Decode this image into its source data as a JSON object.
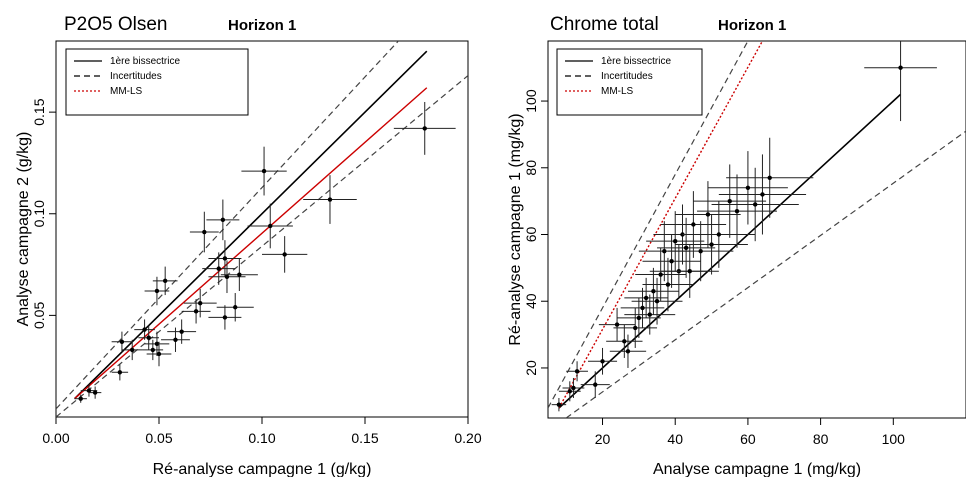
{
  "chart_data": [
    {
      "type": "scatter",
      "title": "P2O5 Olsen",
      "subtitle": "Horizon 1",
      "xlabel": "Ré-analyse campagne 1 (g/kg)",
      "ylabel": "Analyse campagne 2 (g/kg)",
      "xlim": [
        0.0,
        0.2
      ],
      "ylim": [
        0.0,
        0.185
      ],
      "xticks": [
        "0.00",
        "0.05",
        "0.10",
        "0.15",
        "0.20"
      ],
      "yticks": [
        "0.05",
        "0.10",
        "0.15"
      ],
      "legend": {
        "position": "top-left",
        "entries": [
          {
            "label": "1ère bissectrice",
            "style": "solid",
            "color": "#000000"
          },
          {
            "label": "Incertitudes",
            "style": "dashed",
            "color": "#000000"
          },
          {
            "label": "MM-LS",
            "style": "dotted",
            "color": "#cc0000"
          }
        ]
      },
      "reference_lines": {
        "bisector": {
          "x": [
            0.009,
            0.18
          ],
          "y": [
            0.009,
            0.18
          ]
        },
        "upper_uncertainty": {
          "x": [
            0.0,
            0.18
          ],
          "y": [
            0.004,
            0.2
          ]
        },
        "lower_uncertainty": {
          "x": [
            0.0,
            0.2
          ],
          "y": [
            0.0,
            0.168
          ]
        },
        "mm_ls": {
          "x": [
            0.009,
            0.18
          ],
          "y": [
            0.009,
            0.162
          ]
        }
      },
      "points": [
        {
          "x": 0.012,
          "y": 0.009,
          "ex": 0.003,
          "ey": 0.002
        },
        {
          "x": 0.016,
          "y": 0.013,
          "ex": 0.004,
          "ey": 0.003
        },
        {
          "x": 0.019,
          "y": 0.012,
          "ex": 0.003,
          "ey": 0.003
        },
        {
          "x": 0.031,
          "y": 0.022,
          "ex": 0.004,
          "ey": 0.004
        },
        {
          "x": 0.032,
          "y": 0.037,
          "ex": 0.005,
          "ey": 0.005
        },
        {
          "x": 0.037,
          "y": 0.033,
          "ex": 0.005,
          "ey": 0.005
        },
        {
          "x": 0.043,
          "y": 0.043,
          "ex": 0.005,
          "ey": 0.005
        },
        {
          "x": 0.045,
          "y": 0.039,
          "ex": 0.005,
          "ey": 0.006
        },
        {
          "x": 0.047,
          "y": 0.033,
          "ex": 0.005,
          "ey": 0.005
        },
        {
          "x": 0.049,
          "y": 0.036,
          "ex": 0.006,
          "ey": 0.006
        },
        {
          "x": 0.05,
          "y": 0.031,
          "ex": 0.006,
          "ey": 0.006
        },
        {
          "x": 0.049,
          "y": 0.062,
          "ex": 0.006,
          "ey": 0.007
        },
        {
          "x": 0.053,
          "y": 0.067,
          "ex": 0.006,
          "ey": 0.007
        },
        {
          "x": 0.058,
          "y": 0.038,
          "ex": 0.007,
          "ey": 0.006
        },
        {
          "x": 0.061,
          "y": 0.042,
          "ex": 0.007,
          "ey": 0.006
        },
        {
          "x": 0.068,
          "y": 0.052,
          "ex": 0.007,
          "ey": 0.006
        },
        {
          "x": 0.07,
          "y": 0.056,
          "ex": 0.008,
          "ey": 0.007
        },
        {
          "x": 0.072,
          "y": 0.091,
          "ex": 0.007,
          "ey": 0.01
        },
        {
          "x": 0.079,
          "y": 0.073,
          "ex": 0.008,
          "ey": 0.008
        },
        {
          "x": 0.081,
          "y": 0.097,
          "ex": 0.008,
          "ey": 0.01
        },
        {
          "x": 0.082,
          "y": 0.078,
          "ex": 0.008,
          "ey": 0.009
        },
        {
          "x": 0.083,
          "y": 0.069,
          "ex": 0.009,
          "ey": 0.008
        },
        {
          "x": 0.082,
          "y": 0.049,
          "ex": 0.008,
          "ey": 0.006
        },
        {
          "x": 0.087,
          "y": 0.054,
          "ex": 0.009,
          "ey": 0.007
        },
        {
          "x": 0.089,
          "y": 0.07,
          "ex": 0.009,
          "ey": 0.008
        },
        {
          "x": 0.101,
          "y": 0.121,
          "ex": 0.011,
          "ey": 0.012
        },
        {
          "x": 0.104,
          "y": 0.094,
          "ex": 0.011,
          "ey": 0.011
        },
        {
          "x": 0.111,
          "y": 0.08,
          "ex": 0.011,
          "ey": 0.009
        },
        {
          "x": 0.133,
          "y": 0.107,
          "ex": 0.013,
          "ey": 0.012
        },
        {
          "x": 0.179,
          "y": 0.142,
          "ex": 0.015,
          "ey": 0.013
        }
      ]
    },
    {
      "type": "scatter",
      "title": "Chrome total",
      "subtitle": "Horizon 1",
      "xlabel": "Analyse campagne 1 (mg/kg)",
      "ylabel": "Ré-analyse campagne 1 (mg/kg)",
      "xlim": [
        5,
        120
      ],
      "ylim": [
        5,
        118
      ],
      "xticks": [
        "20",
        "40",
        "60",
        "80",
        "100"
      ],
      "yticks": [
        "20",
        "40",
        "60",
        "80",
        "100"
      ],
      "legend": {
        "position": "top-left",
        "entries": [
          {
            "label": "1ère bissectrice",
            "style": "solid",
            "color": "#000000"
          },
          {
            "label": "Incertitudes",
            "style": "dashed",
            "color": "#000000"
          },
          {
            "label": "MM-LS",
            "style": "dotted",
            "color": "#cc0000"
          }
        ]
      },
      "reference_lines": {
        "bisector": {
          "x": [
            8,
            102
          ],
          "y": [
            8,
            102
          ]
        },
        "upper_uncertainty": {
          "x": [
            5,
            60
          ],
          "y": [
            8,
            118
          ]
        },
        "lower_uncertainty": {
          "x": [
            10,
            120
          ],
          "y": [
            5,
            91
          ]
        },
        "mm_ls": {
          "x": [
            8,
            64
          ],
          "y": [
            8,
            118
          ]
        }
      },
      "points": [
        {
          "x": 8,
          "y": 9,
          "ex": 2,
          "ey": 2
        },
        {
          "x": 11,
          "y": 13,
          "ex": 3,
          "ey": 3
        },
        {
          "x": 12,
          "y": 14,
          "ex": 3,
          "ey": 3
        },
        {
          "x": 13,
          "y": 19,
          "ex": 3,
          "ey": 3
        },
        {
          "x": 18,
          "y": 15,
          "ex": 4,
          "ey": 4
        },
        {
          "x": 20,
          "y": 22,
          "ex": 4,
          "ey": 4
        },
        {
          "x": 24,
          "y": 33,
          "ex": 5,
          "ey": 5
        },
        {
          "x": 26,
          "y": 28,
          "ex": 5,
          "ey": 5
        },
        {
          "x": 27,
          "y": 25,
          "ex": 5,
          "ey": 5
        },
        {
          "x": 29,
          "y": 32,
          "ex": 6,
          "ey": 6
        },
        {
          "x": 30,
          "y": 35,
          "ex": 6,
          "ey": 6
        },
        {
          "x": 31,
          "y": 38,
          "ex": 6,
          "ey": 6
        },
        {
          "x": 32,
          "y": 41,
          "ex": 6,
          "ey": 6
        },
        {
          "x": 33,
          "y": 36,
          "ex": 7,
          "ey": 6
        },
        {
          "x": 34,
          "y": 43,
          "ex": 7,
          "ey": 7
        },
        {
          "x": 35,
          "y": 40,
          "ex": 7,
          "ey": 7
        },
        {
          "x": 36,
          "y": 48,
          "ex": 7,
          "ey": 8
        },
        {
          "x": 37,
          "y": 55,
          "ex": 7,
          "ey": 9
        },
        {
          "x": 38,
          "y": 45,
          "ex": 7,
          "ey": 8
        },
        {
          "x": 39,
          "y": 52,
          "ex": 8,
          "ey": 8
        },
        {
          "x": 40,
          "y": 58,
          "ex": 8,
          "ey": 9
        },
        {
          "x": 41,
          "y": 49,
          "ex": 8,
          "ey": 8
        },
        {
          "x": 42,
          "y": 60,
          "ex": 8,
          "ey": 9
        },
        {
          "x": 43,
          "y": 56,
          "ex": 8,
          "ey": 9
        },
        {
          "x": 44,
          "y": 49,
          "ex": 8,
          "ey": 8
        },
        {
          "x": 45,
          "y": 63,
          "ex": 9,
          "ey": 10
        },
        {
          "x": 47,
          "y": 55,
          "ex": 9,
          "ey": 9
        },
        {
          "x": 49,
          "y": 66,
          "ex": 9,
          "ey": 10
        },
        {
          "x": 50,
          "y": 57,
          "ex": 10,
          "ey": 9
        },
        {
          "x": 52,
          "y": 60,
          "ex": 10,
          "ey": 10
        },
        {
          "x": 55,
          "y": 70,
          "ex": 10,
          "ey": 11
        },
        {
          "x": 57,
          "y": 67,
          "ex": 11,
          "ey": 11
        },
        {
          "x": 60,
          "y": 74,
          "ex": 11,
          "ey": 11
        },
        {
          "x": 62,
          "y": 69,
          "ex": 12,
          "ey": 11
        },
        {
          "x": 64,
          "y": 72,
          "ex": 12,
          "ey": 12
        },
        {
          "x": 66,
          "y": 77,
          "ex": 12,
          "ey": 12
        },
        {
          "x": 102,
          "y": 110,
          "ex": 10,
          "ey": 16
        }
      ]
    }
  ]
}
